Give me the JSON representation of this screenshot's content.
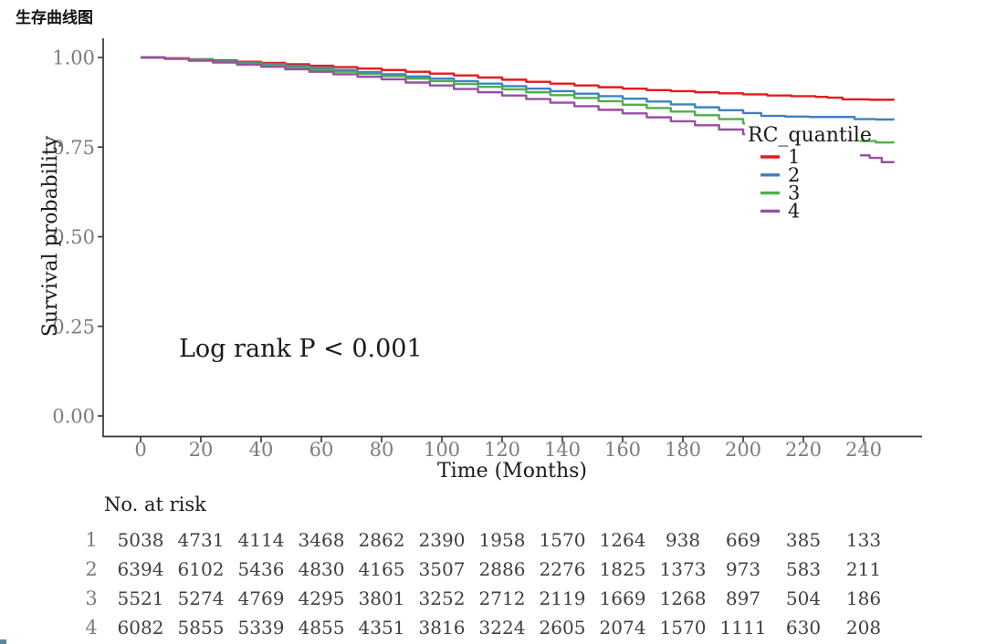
{
  "page_title": "生存曲线图",
  "chart_data": {
    "type": "line",
    "subtype": "kaplan-meier-step",
    "title": "生存曲线图",
    "xlabel": "Time (Months)",
    "ylabel": "Survival probability",
    "annotation": "Log rank P < 0.001",
    "legend_title": "RC_quantile",
    "legend_position": "inside-right",
    "grid": false,
    "xlim": [
      0,
      250
    ],
    "ylim": [
      0.0,
      1.0
    ],
    "xticks": [
      0,
      20,
      40,
      60,
      80,
      100,
      120,
      140,
      160,
      180,
      200,
      220,
      240
    ],
    "yticks": [
      {
        "label": "0.00",
        "value": 0.0
      },
      {
        "label": "0.25",
        "value": 0.25
      },
      {
        "label": "0.50",
        "value": 0.5
      },
      {
        "label": "0.75",
        "value": 0.75
      },
      {
        "label": "1.00",
        "value": 1.0
      }
    ],
    "series": [
      {
        "name": "1",
        "color": "#E41A1C",
        "points": [
          [
            0,
            1.0
          ],
          [
            8,
            0.998
          ],
          [
            16,
            0.995
          ],
          [
            24,
            0.992
          ],
          [
            32,
            0.988
          ],
          [
            40,
            0.985
          ],
          [
            48,
            0.981
          ],
          [
            56,
            0.977
          ],
          [
            64,
            0.973
          ],
          [
            72,
            0.969
          ],
          [
            80,
            0.965
          ],
          [
            88,
            0.96
          ],
          [
            96,
            0.955
          ],
          [
            104,
            0.95
          ],
          [
            112,
            0.944
          ],
          [
            120,
            0.938
          ],
          [
            128,
            0.932
          ],
          [
            136,
            0.927
          ],
          [
            144,
            0.922
          ],
          [
            152,
            0.917
          ],
          [
            160,
            0.913
          ],
          [
            168,
            0.909
          ],
          [
            176,
            0.906
          ],
          [
            184,
            0.903
          ],
          [
            192,
            0.9
          ],
          [
            200,
            0.897
          ],
          [
            208,
            0.894
          ],
          [
            216,
            0.892
          ],
          [
            224,
            0.89
          ],
          [
            228,
            0.888
          ],
          [
            233,
            0.883
          ],
          [
            242,
            0.882
          ],
          [
            250,
            0.881
          ]
        ]
      },
      {
        "name": "2",
        "color": "#4080BF",
        "points": [
          [
            0,
            1.0
          ],
          [
            8,
            0.997
          ],
          [
            16,
            0.994
          ],
          [
            24,
            0.99
          ],
          [
            32,
            0.986
          ],
          [
            40,
            0.982
          ],
          [
            48,
            0.977
          ],
          [
            56,
            0.971
          ],
          [
            64,
            0.965
          ],
          [
            72,
            0.959
          ],
          [
            80,
            0.953
          ],
          [
            88,
            0.947
          ],
          [
            96,
            0.941
          ],
          [
            104,
            0.934
          ],
          [
            112,
            0.927
          ],
          [
            120,
            0.92
          ],
          [
            128,
            0.913
          ],
          [
            136,
            0.906
          ],
          [
            144,
            0.899
          ],
          [
            152,
            0.892
          ],
          [
            160,
            0.885
          ],
          [
            168,
            0.877
          ],
          [
            176,
            0.869
          ],
          [
            184,
            0.861
          ],
          [
            192,
            0.853
          ],
          [
            200,
            0.845
          ],
          [
            206,
            0.837
          ],
          [
            214,
            0.835
          ],
          [
            222,
            0.834
          ],
          [
            230,
            0.834
          ],
          [
            237,
            0.828
          ],
          [
            244,
            0.827
          ],
          [
            250,
            0.826
          ]
        ]
      },
      {
        "name": "3",
        "color": "#4DAF4A",
        "points": [
          [
            0,
            1.0
          ],
          [
            8,
            0.997
          ],
          [
            16,
            0.993
          ],
          [
            24,
            0.988
          ],
          [
            32,
            0.983
          ],
          [
            40,
            0.978
          ],
          [
            48,
            0.972
          ],
          [
            56,
            0.966
          ],
          [
            64,
            0.96
          ],
          [
            72,
            0.954
          ],
          [
            80,
            0.948
          ],
          [
            88,
            0.941
          ],
          [
            96,
            0.934
          ],
          [
            104,
            0.926
          ],
          [
            112,
            0.918
          ],
          [
            120,
            0.911
          ],
          [
            128,
            0.903
          ],
          [
            136,
            0.895
          ],
          [
            144,
            0.887
          ],
          [
            152,
            0.878
          ],
          [
            160,
            0.868
          ],
          [
            168,
            0.859
          ],
          [
            176,
            0.849
          ],
          [
            184,
            0.839
          ],
          [
            192,
            0.828
          ],
          [
            200,
            0.816
          ],
          [
            208,
            0.805
          ],
          [
            216,
            0.793
          ],
          [
            224,
            0.783
          ],
          [
            232,
            0.773
          ],
          [
            238,
            0.767
          ],
          [
            244,
            0.763
          ],
          [
            250,
            0.762
          ]
        ]
      },
      {
        "name": "4",
        "color": "#984EA3",
        "points": [
          [
            0,
            1.0
          ],
          [
            8,
            0.996
          ],
          [
            16,
            0.991
          ],
          [
            24,
            0.986
          ],
          [
            32,
            0.98
          ],
          [
            40,
            0.974
          ],
          [
            48,
            0.967
          ],
          [
            56,
            0.96
          ],
          [
            64,
            0.953
          ],
          [
            72,
            0.946
          ],
          [
            80,
            0.939
          ],
          [
            88,
            0.93
          ],
          [
            96,
            0.922
          ],
          [
            104,
            0.912
          ],
          [
            112,
            0.903
          ],
          [
            120,
            0.894
          ],
          [
            128,
            0.884
          ],
          [
            136,
            0.874
          ],
          [
            144,
            0.864
          ],
          [
            152,
            0.854
          ],
          [
            160,
            0.844
          ],
          [
            168,
            0.833
          ],
          [
            176,
            0.822
          ],
          [
            184,
            0.811
          ],
          [
            192,
            0.799
          ],
          [
            200,
            0.786
          ],
          [
            208,
            0.773
          ],
          [
            216,
            0.762
          ],
          [
            224,
            0.752
          ],
          [
            230,
            0.744
          ],
          [
            236,
            0.727
          ],
          [
            242,
            0.72
          ],
          [
            246,
            0.708
          ],
          [
            250,
            0.707
          ]
        ]
      }
    ],
    "risk_table": {
      "title": "No. at risk",
      "times": [
        0,
        20,
        40,
        60,
        80,
        100,
        120,
        140,
        160,
        180,
        200,
        220,
        240
      ],
      "rows": [
        {
          "label": "1",
          "values": [
            5038,
            4731,
            4114,
            3468,
            2862,
            2390,
            1958,
            1570,
            1264,
            938,
            669,
            385,
            133
          ]
        },
        {
          "label": "2",
          "values": [
            6394,
            6102,
            5436,
            4830,
            4165,
            3507,
            2886,
            2276,
            1825,
            1373,
            973,
            583,
            211
          ]
        },
        {
          "label": "3",
          "values": [
            5521,
            5274,
            4769,
            4295,
            3801,
            3252,
            2712,
            2119,
            1669,
            1268,
            897,
            504,
            186
          ]
        },
        {
          "label": "4",
          "values": [
            6082,
            5855,
            5339,
            4855,
            4351,
            3816,
            3224,
            2605,
            2074,
            1570,
            1111,
            630,
            208
          ]
        }
      ]
    },
    "colors": {
      "axis": "#333333",
      "tick_label": "#7d7d7d",
      "text": "#1a1a1a",
      "risk_value": "#404040"
    }
  }
}
